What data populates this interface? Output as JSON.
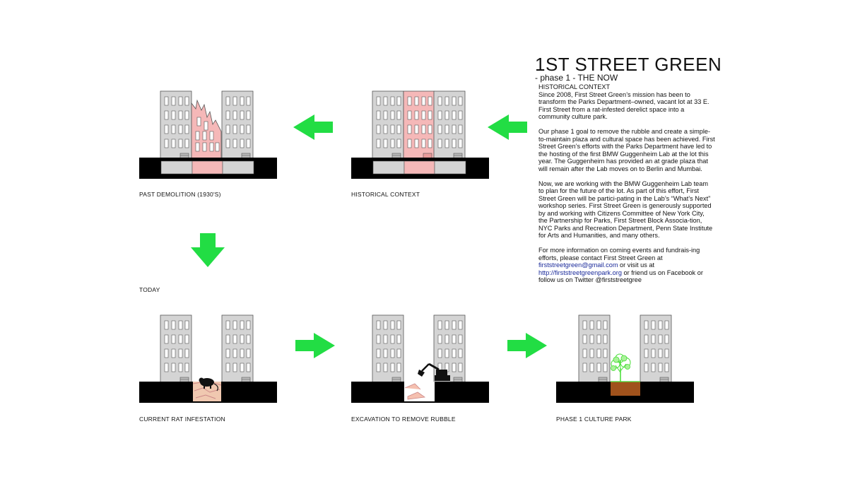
{
  "sidebar": {
    "title": "1ST STREET GREEN",
    "subtitle": "- phase 1 - THE NOW",
    "heading": "HISTORICAL CONTEXT",
    "paragraphs": [
      "Since 2008, First Street Green’s mission has been to transform the Parks Department–owned, vacant lot at 33 E. First Street from a rat-infested derelict space into a community culture park.",
      "Our phase 1 goal to remove the rubble and create a simple-to-maintain plaza and cultural space has been achieved.  First Street Green’s efforts with the Parks Department have led to the hosting of the first BMW Guggenheim Lab at the lot this year. The Guggenheim has provided an at grade plaza that will remain after the Lab moves on to Berlin and Mumbai.",
      "Now, we are working with the BMW Guggenheim Lab team to plan for the future of the lot. As part of this effort, First Street Green will be partici-pating in the Lab’s “What’s Next” workshop series. First Street Green is generously supported by and working with Citizens Committee of New York City, the Partnership for Parks, First Street Block Associa-tion, NYC Parks and Recreation Department, Penn State Institute for Arts and Humanities, and many others."
    ],
    "contact_intro": "For more information on coming events and fundrais-ing efforts, please contact First Street Green at",
    "email": "firststreetgreen@gmail.com",
    "contact_mid": " or visit us at",
    "website": "http://firststreetgreenpark.org",
    "contact_end": " or friend us on Facebook or follow us on Twitter @firststreetgree"
  },
  "panels": {
    "past_demolition": "PAST DEMOLITION (1930'S)",
    "historical_context": "HISTORICAL CONTEXT",
    "today": "TODAY",
    "rat_infestation": "CURRENT RAT INFESTATION",
    "excavation": "EXCAVATION TO REMOVE RUBBLE",
    "culture_park": "PHASE 1 CULTURE PARK"
  },
  "colors": {
    "building_gray": "#d4d4d4",
    "building_pink": "#f5b8b8",
    "ground": "#000000",
    "arrow_green": "#22dd44",
    "soil_brown": "#a0521c",
    "tree_green": "#44dd33",
    "link_blue": "#1a2a9a"
  }
}
